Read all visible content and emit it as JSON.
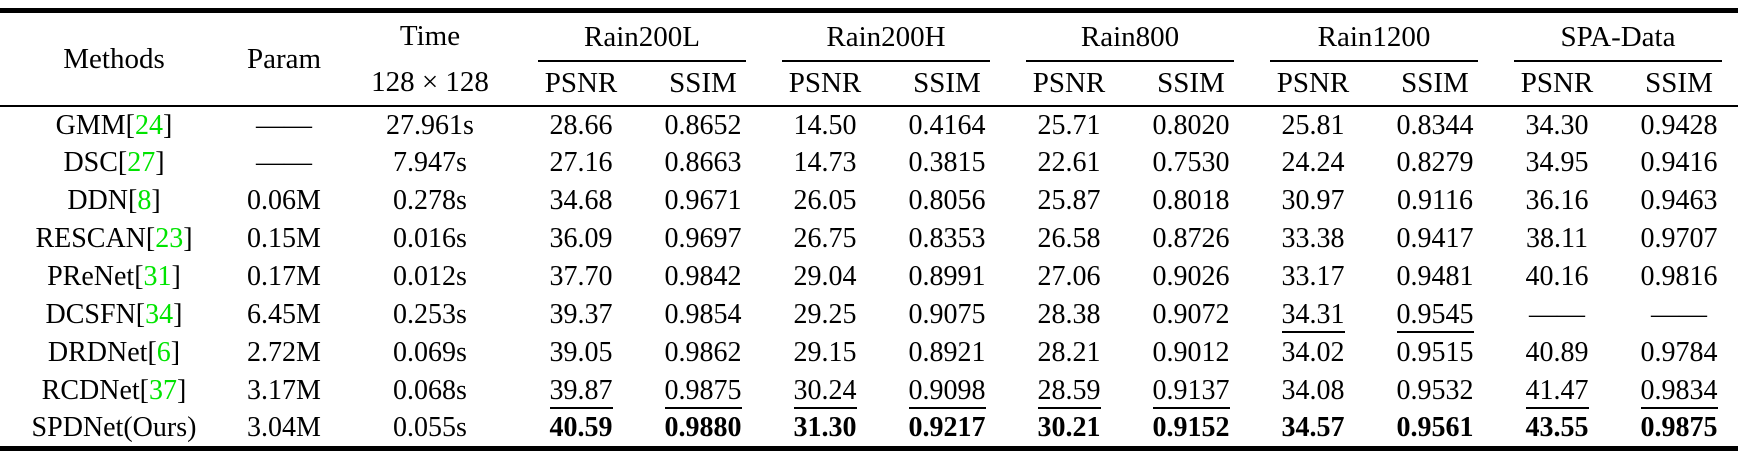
{
  "table": {
    "citation_color": "#00e400",
    "headers": {
      "methods": "Methods",
      "param": "Param",
      "time_line1": "Time",
      "time_line2": "128 × 128"
    },
    "groups": [
      "Rain200L",
      "Rain200H",
      "Rain800",
      "Rain1200",
      "SPA-Data"
    ],
    "subheaders": [
      "PSNR",
      "SSIM"
    ],
    "rows": [
      {
        "method": "GMM",
        "cite": "24",
        "param": "——",
        "time": "27.961s",
        "values": [
          [
            "28.66",
            "n"
          ],
          [
            "0.8652",
            "n"
          ],
          [
            "14.50",
            "n"
          ],
          [
            "0.4164",
            "n"
          ],
          [
            "25.71",
            "n"
          ],
          [
            "0.8020",
            "n"
          ],
          [
            "25.81",
            "n"
          ],
          [
            "0.8344",
            "n"
          ],
          [
            "34.30",
            "n"
          ],
          [
            "0.9428",
            "n"
          ]
        ]
      },
      {
        "method": "DSC",
        "cite": "27",
        "param": "——",
        "time": "7.947s",
        "values": [
          [
            "27.16",
            "n"
          ],
          [
            "0.8663",
            "n"
          ],
          [
            "14.73",
            "n"
          ],
          [
            "0.3815",
            "n"
          ],
          [
            "22.61",
            "n"
          ],
          [
            "0.7530",
            "n"
          ],
          [
            "24.24",
            "n"
          ],
          [
            "0.8279",
            "n"
          ],
          [
            "34.95",
            "n"
          ],
          [
            "0.9416",
            "n"
          ]
        ]
      },
      {
        "method": "DDN",
        "cite": "8",
        "param": "0.06M",
        "time": "0.278s",
        "values": [
          [
            "34.68",
            "n"
          ],
          [
            "0.9671",
            "n"
          ],
          [
            "26.05",
            "n"
          ],
          [
            "0.8056",
            "n"
          ],
          [
            "25.87",
            "n"
          ],
          [
            "0.8018",
            "n"
          ],
          [
            "30.97",
            "n"
          ],
          [
            "0.9116",
            "n"
          ],
          [
            "36.16",
            "n"
          ],
          [
            "0.9463",
            "n"
          ]
        ]
      },
      {
        "method": "RESCAN",
        "cite": "23",
        "param": "0.15M",
        "time": "0.016s",
        "values": [
          [
            "36.09",
            "n"
          ],
          [
            "0.9697",
            "n"
          ],
          [
            "26.75",
            "n"
          ],
          [
            "0.8353",
            "n"
          ],
          [
            "26.58",
            "n"
          ],
          [
            "0.8726",
            "n"
          ],
          [
            "33.38",
            "n"
          ],
          [
            "0.9417",
            "n"
          ],
          [
            "38.11",
            "n"
          ],
          [
            "0.9707",
            "n"
          ]
        ]
      },
      {
        "method": "PReNet",
        "cite": "31",
        "param": "0.17M",
        "time": "0.012s",
        "values": [
          [
            "37.70",
            "n"
          ],
          [
            "0.9842",
            "n"
          ],
          [
            "29.04",
            "n"
          ],
          [
            "0.8991",
            "n"
          ],
          [
            "27.06",
            "n"
          ],
          [
            "0.9026",
            "n"
          ],
          [
            "33.17",
            "n"
          ],
          [
            "0.9481",
            "n"
          ],
          [
            "40.16",
            "n"
          ],
          [
            "0.9816",
            "n"
          ]
        ]
      },
      {
        "method": "DCSFN",
        "cite": "34",
        "param": "6.45M",
        "time": "0.253s",
        "values": [
          [
            "39.37",
            "n"
          ],
          [
            "0.9854",
            "n"
          ],
          [
            "29.25",
            "n"
          ],
          [
            "0.9075",
            "n"
          ],
          [
            "28.38",
            "n"
          ],
          [
            "0.9072",
            "n"
          ],
          [
            "34.31",
            "u"
          ],
          [
            "0.9545",
            "u"
          ],
          [
            "——",
            "n"
          ],
          [
            "——",
            "n"
          ]
        ]
      },
      {
        "method": "DRDNet",
        "cite": "6",
        "param": "2.72M",
        "time": "0.069s",
        "values": [
          [
            "39.05",
            "n"
          ],
          [
            "0.9862",
            "n"
          ],
          [
            "29.15",
            "n"
          ],
          [
            "0.8921",
            "n"
          ],
          [
            "28.21",
            "n"
          ],
          [
            "0.9012",
            "n"
          ],
          [
            "34.02",
            "n"
          ],
          [
            "0.9515",
            "n"
          ],
          [
            "40.89",
            "n"
          ],
          [
            "0.9784",
            "n"
          ]
        ]
      },
      {
        "method": "RCDNet",
        "cite": "37",
        "param": "3.17M",
        "time": "0.068s",
        "values": [
          [
            "39.87",
            "u"
          ],
          [
            "0.9875",
            "u"
          ],
          [
            "30.24",
            "u"
          ],
          [
            "0.9098",
            "u"
          ],
          [
            "28.59",
            "u"
          ],
          [
            "0.9137",
            "u"
          ],
          [
            "34.08",
            "n"
          ],
          [
            "0.9532",
            "n"
          ],
          [
            "41.47",
            "u"
          ],
          [
            "0.9834",
            "u"
          ]
        ]
      },
      {
        "method": "SPDNet(Ours)",
        "cite": "",
        "param": "3.04M",
        "time": "0.055s",
        "values": [
          [
            "40.59",
            "b"
          ],
          [
            "0.9880",
            "b"
          ],
          [
            "31.30",
            "b"
          ],
          [
            "0.9217",
            "b"
          ],
          [
            "30.21",
            "b"
          ],
          [
            "0.9152",
            "b"
          ],
          [
            "34.57",
            "b"
          ],
          [
            "0.9561",
            "b"
          ],
          [
            "43.55",
            "b"
          ],
          [
            "0.9875",
            "b"
          ]
        ]
      }
    ]
  }
}
